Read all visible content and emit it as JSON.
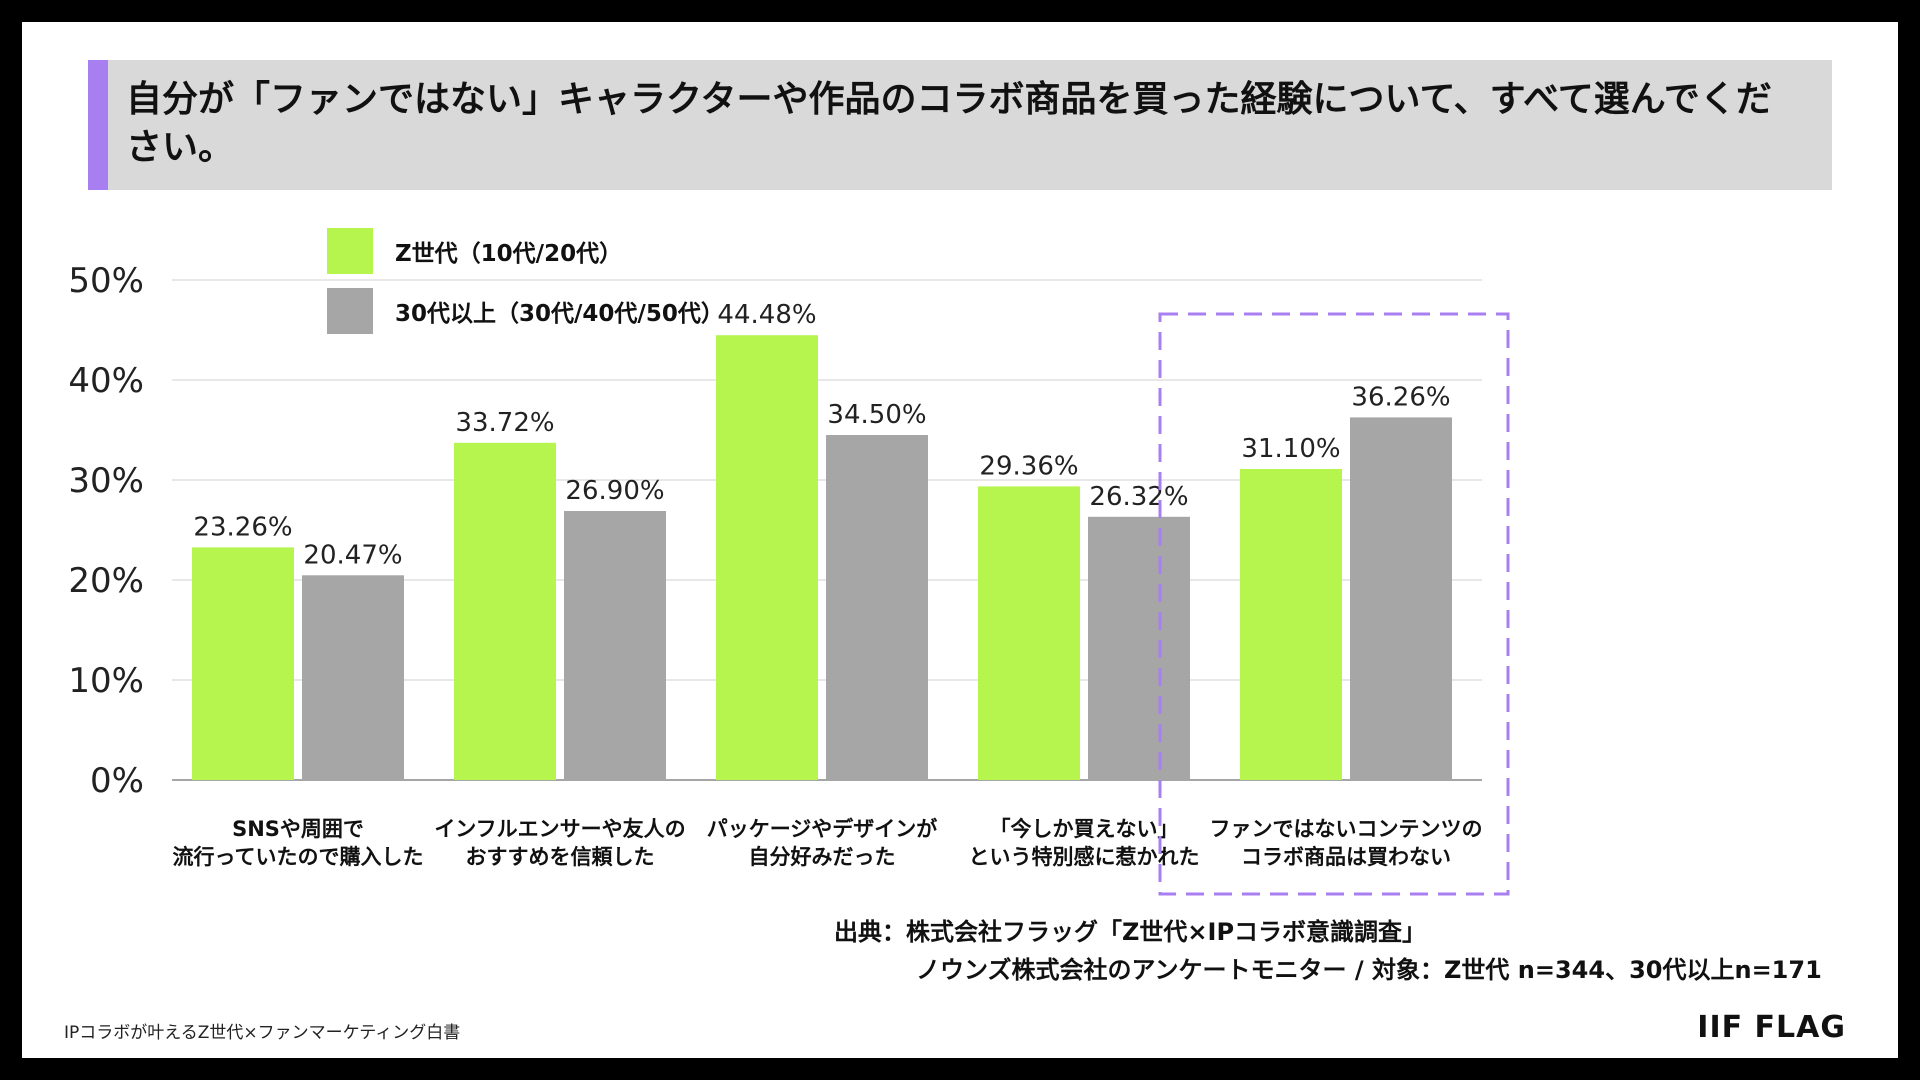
{
  "title": "自分が「ファンではない」キャラクターや作品のコラボ商品を買った経験について、すべて選んでください。",
  "colors": {
    "accent": "#a87ff0",
    "genz": "#b5f54e",
    "older": "#a6a6a6",
    "highlight": "#a87ff0"
  },
  "chart_data": {
    "type": "bar",
    "categories": [
      [
        "SNSや周囲で",
        "流行っていたので購入した"
      ],
      [
        "インフルエンサーや友人の",
        "おすすめを信頼した"
      ],
      [
        "パッケージやデザインが",
        "自分好みだった"
      ],
      [
        "「今しか買えない」",
        "という特別感に惹かれた"
      ],
      [
        "ファンではないコンテンツの",
        "コラボ商品は買わない"
      ]
    ],
    "series": [
      {
        "name": "Z世代（10代/20代）",
        "values": [
          23.26,
          33.72,
          44.48,
          29.36,
          31.1
        ],
        "labels": [
          "23.26%",
          "33.72%",
          "44.48%",
          "29.36%",
          "31.10%"
        ]
      },
      {
        "name": "30代以上（30代/40代/50代）",
        "values": [
          20.47,
          26.9,
          34.5,
          26.32,
          36.26
        ],
        "labels": [
          "20.47%",
          "26.90%",
          "34.50%",
          "26.32%",
          "36.26%"
        ]
      }
    ],
    "yticks": [
      "0%",
      "10%",
      "20%",
      "30%",
      "40%",
      "50%"
    ],
    "ylim": [
      0,
      50
    ],
    "grid": true,
    "legend": "top-left",
    "highlighted_category": 4
  },
  "source": {
    "line1": "出典：株式会社フラッグ「Z世代×IPコラボ意識調査」",
    "line2": "ノウンズ株式会社のアンケートモニター / 対象：Z世代 n=344、30代以上n=171"
  },
  "footer": {
    "left": "IPコラボが叶えるZ世代×ファンマーケティング白書",
    "logo": "IIF FLAG"
  }
}
